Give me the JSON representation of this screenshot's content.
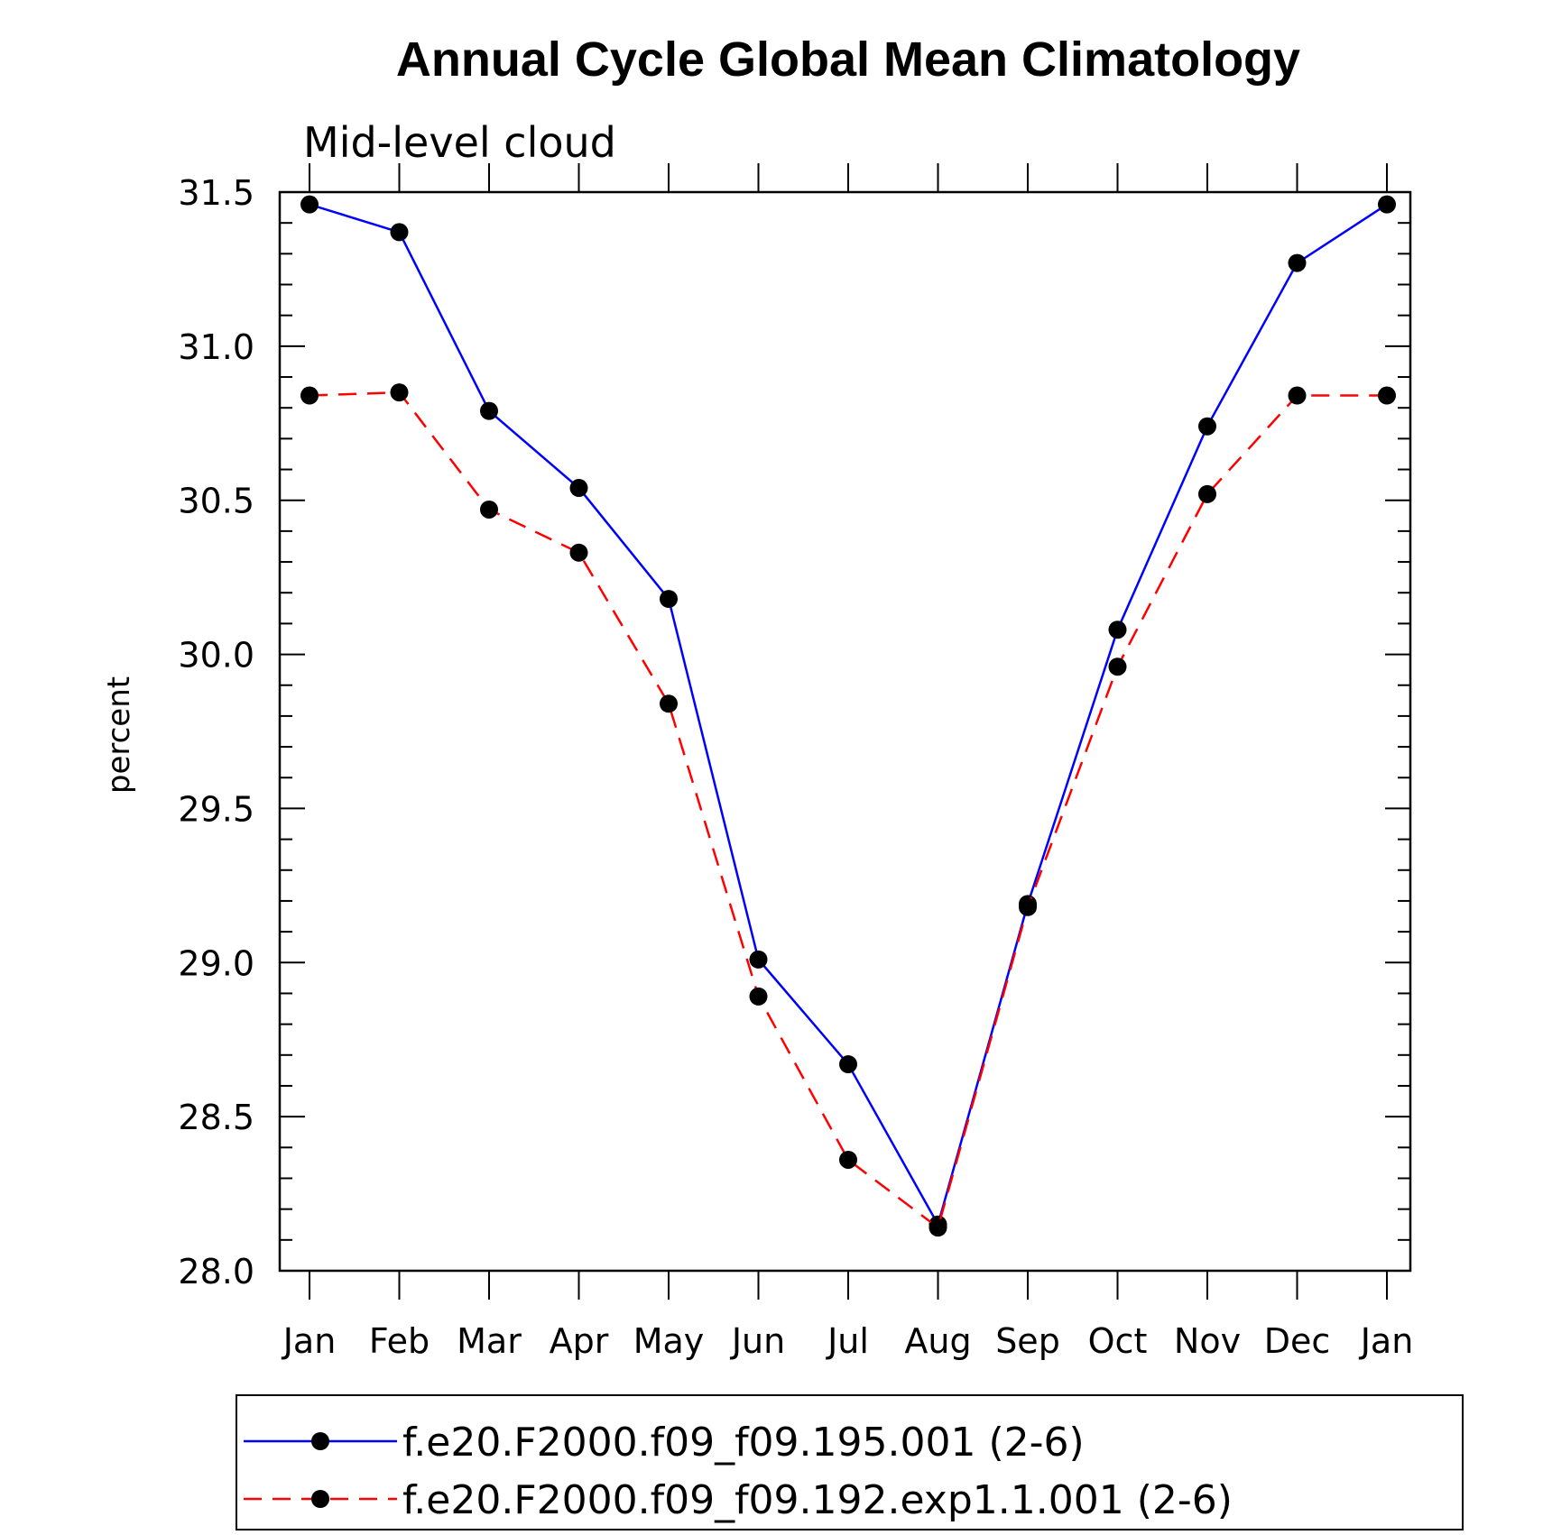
{
  "chart_data": {
    "type": "line",
    "title": "Annual Cycle Global Mean Climatology",
    "subtitle": "Mid-level cloud",
    "xlabel": "",
    "ylabel": "percent",
    "ylim": [
      28.0,
      31.5
    ],
    "yticks": [
      "28.0",
      "28.5",
      "29.0",
      "29.5",
      "30.0",
      "30.5",
      "31.0",
      "31.5"
    ],
    "categories": [
      "Jan",
      "Feb",
      "Mar",
      "Apr",
      "May",
      "Jun",
      "Jul",
      "Aug",
      "Sep",
      "Oct",
      "Nov",
      "Dec",
      "Jan"
    ],
    "series": [
      {
        "name": "f.e20.F2000.f09_f09.195.001 (2-6)",
        "color": "#0000ff",
        "dash": "solid",
        "values": [
          31.46,
          31.37,
          30.79,
          30.54,
          30.18,
          29.01,
          28.67,
          28.15,
          29.19,
          30.08,
          30.74,
          31.27,
          31.46
        ]
      },
      {
        "name": "f.e20.F2000.f09_f09.192.exp1.1.001 (2-6)",
        "color": "#ff0000",
        "dash": "dashed",
        "values": [
          30.84,
          30.85,
          30.47,
          30.33,
          29.84,
          28.89,
          28.36,
          28.14,
          29.18,
          29.96,
          30.52,
          30.84,
          30.84
        ]
      }
    ],
    "legend_position": "bottom",
    "grid": false
  }
}
